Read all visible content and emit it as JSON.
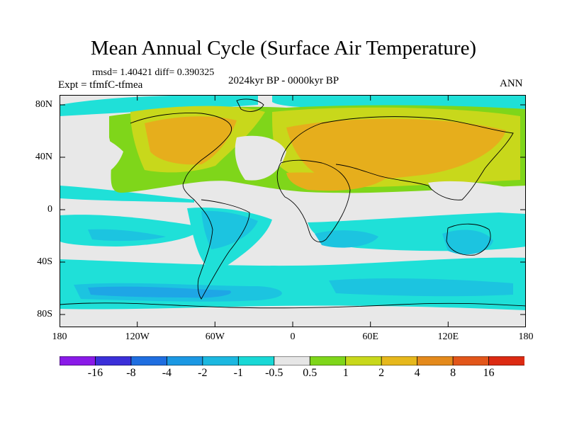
{
  "title": "Mean Annual Cycle (Surface Air Temperature)",
  "stats_line": "rmsd= 1.40421 diff= 0.390325",
  "experiment_line": "Expt = tfmfC-tfmea",
  "period_line": "2024kyr BP - 0000kyr BP",
  "season": "ANN",
  "lat_ticks": [
    "80N",
    "40N",
    "0",
    "40S",
    "80S"
  ],
  "lon_ticks": [
    "180",
    "120W",
    "60W",
    "0",
    "60E",
    "120E",
    "180"
  ],
  "colorbar": {
    "labels": [
      "-16",
      "-8",
      "-4",
      "-2",
      "-1",
      "-0.5",
      "0.5",
      "1",
      "2",
      "4",
      "8",
      "16"
    ],
    "colors": [
      "#8a1ae8",
      "#3b2fd9",
      "#1f6ee0",
      "#1b98e3",
      "#1cb8e0",
      "#19d8d6",
      "#e6e6e6",
      "#7fd61a",
      "#c8d81b",
      "#e6b81c",
      "#e48a1c",
      "#e2561a",
      "#dc2a12"
    ]
  },
  "palette": {
    "no_change": "#e8e8e8",
    "pale_cyan": "#1fe0d8",
    "cyan": "#1cc4e0",
    "blue": "#1ea6e6",
    "green": "#7fd61a",
    "yellow": "#c8d81b",
    "orange": "#e6ae1c",
    "coastline": "#000000"
  }
}
